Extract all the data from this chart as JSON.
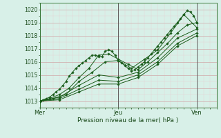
{
  "xlabel": "Pression niveau de la mer( hPa )",
  "ylim": [
    1012.5,
    1020.5
  ],
  "xlim": [
    0,
    54
  ],
  "yticks": [
    1013,
    1014,
    1015,
    1016,
    1017,
    1018,
    1019,
    1020
  ],
  "xtick_positions": [
    0,
    24,
    48
  ],
  "xtick_labels": [
    "Mer",
    "Jeu",
    "Ven"
  ],
  "bg_color": "#d8f0e8",
  "grid_color_major": "#d0a8a8",
  "grid_color_minor": "#e8d0d0",
  "line_color": "#1a5c1a",
  "marker": "D",
  "markersize": 1.8,
  "linewidth": 0.7,
  "series": [
    {
      "x": [
        0,
        1,
        2,
        3,
        4,
        5,
        6,
        7,
        8,
        9,
        10,
        11,
        12,
        13,
        14,
        15,
        16,
        17,
        18,
        19,
        20,
        21,
        22,
        23,
        24,
        25,
        26,
        27,
        28,
        29,
        30,
        31,
        32,
        33,
        34,
        35,
        36,
        37,
        38,
        39,
        40,
        41,
        42,
        43,
        44,
        45,
        46,
        47,
        48
      ],
      "y": [
        1013.0,
        1013.1,
        1013.2,
        1013.3,
        1013.5,
        1013.7,
        1013.9,
        1014.2,
        1014.5,
        1014.9,
        1015.2,
        1015.5,
        1015.7,
        1015.9,
        1016.1,
        1016.3,
        1016.5,
        1016.5,
        1016.4,
        1016.4,
        1016.8,
        1016.9,
        1016.8,
        1016.5,
        1016.1,
        1015.9,
        1015.7,
        1015.5,
        1015.3,
        1015.4,
        1015.6,
        1015.8,
        1016.0,
        1016.3,
        1016.6,
        1016.9,
        1017.2,
        1017.5,
        1017.8,
        1018.1,
        1018.4,
        1018.7,
        1019.0,
        1019.3,
        1019.6,
        1019.9,
        1019.8,
        1019.5,
        1019.0
      ]
    },
    {
      "x": [
        0,
        3,
        6,
        9,
        12,
        15,
        18,
        21,
        24,
        27,
        30,
        33,
        36,
        39,
        42,
        45,
        48
      ],
      "y": [
        1013.0,
        1013.2,
        1013.5,
        1014.0,
        1014.8,
        1015.5,
        1016.5,
        1016.6,
        1016.2,
        1015.8,
        1015.4,
        1016.0,
        1016.7,
        1017.4,
        1018.2,
        1018.8,
        1019.0
      ]
    },
    {
      "x": [
        0,
        4,
        8,
        12,
        16,
        20,
        24,
        28,
        32,
        36,
        40,
        44,
        48
      ],
      "y": [
        1013.0,
        1013.2,
        1013.5,
        1014.5,
        1015.2,
        1016.0,
        1016.1,
        1015.5,
        1016.2,
        1016.9,
        1018.2,
        1019.6,
        1018.6
      ]
    },
    {
      "x": [
        0,
        6,
        12,
        18,
        24,
        30,
        36,
        42,
        48
      ],
      "y": [
        1013.0,
        1013.3,
        1014.2,
        1015.0,
        1014.8,
        1015.2,
        1016.3,
        1017.8,
        1018.5
      ]
    },
    {
      "x": [
        0,
        6,
        12,
        18,
        24,
        30,
        36,
        42,
        48
      ],
      "y": [
        1013.0,
        1013.2,
        1013.9,
        1014.6,
        1014.5,
        1015.0,
        1016.0,
        1017.4,
        1018.2
      ]
    },
    {
      "x": [
        0,
        6,
        12,
        18,
        24,
        30,
        36,
        42,
        48
      ],
      "y": [
        1013.0,
        1013.1,
        1013.7,
        1014.3,
        1014.3,
        1014.8,
        1015.8,
        1017.2,
        1018.0
      ]
    }
  ]
}
